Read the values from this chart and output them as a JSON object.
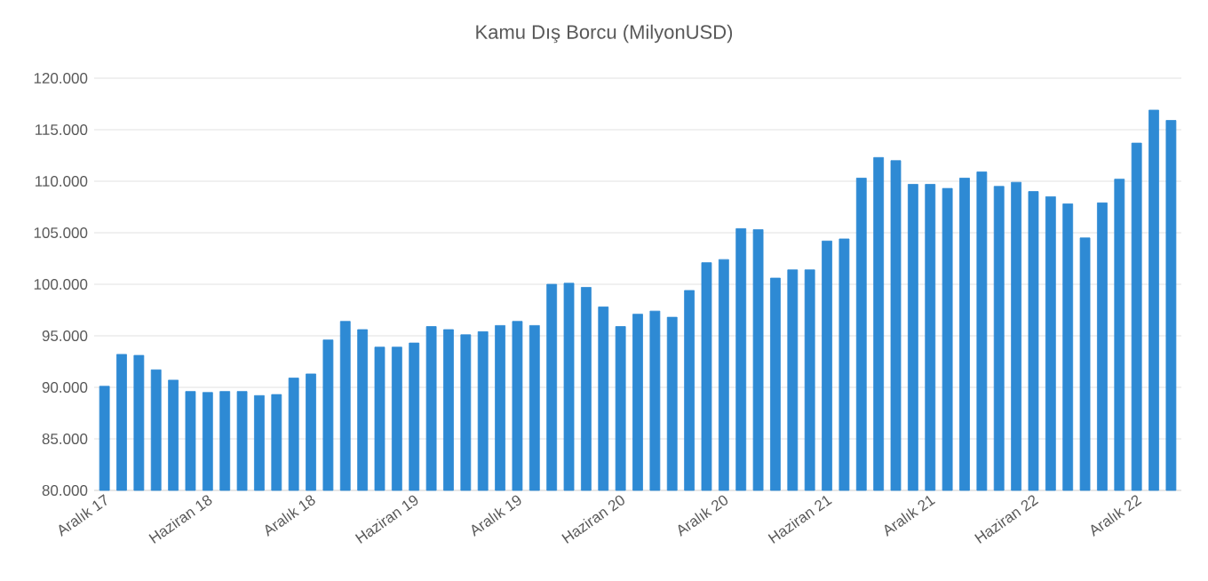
{
  "chart_data": {
    "type": "bar",
    "title": "Kamu Dış Borcu (MilyonUSD)",
    "categories": [
      "Aralık 17",
      null,
      null,
      null,
      null,
      null,
      "Haziran 18",
      null,
      null,
      null,
      null,
      null,
      "Aralık 18",
      null,
      null,
      null,
      null,
      null,
      "Haziran 19",
      null,
      null,
      null,
      null,
      null,
      "Aralık 19",
      null,
      null,
      null,
      null,
      null,
      "Haziran 20",
      null,
      null,
      null,
      null,
      null,
      "Aralık 20",
      null,
      null,
      null,
      null,
      null,
      "Haziran 21",
      null,
      null,
      null,
      null,
      null,
      "Aralık 21",
      null,
      null,
      null,
      null,
      null,
      "Haziran 22",
      null,
      null,
      null,
      null,
      null,
      "Aralık 22",
      null,
      null
    ],
    "values": [
      90100,
      93200,
      93100,
      91700,
      90700,
      89600,
      89500,
      89600,
      89600,
      89200,
      89300,
      90900,
      91300,
      94600,
      96400,
      95600,
      93900,
      93900,
      94300,
      95900,
      95600,
      95100,
      95400,
      96000,
      96400,
      96000,
      100000,
      100100,
      99700,
      97800,
      95900,
      97100,
      97400,
      96800,
      99400,
      102100,
      102400,
      105400,
      105300,
      100600,
      101400,
      101400,
      104200,
      104400,
      110300,
      112300,
      112000,
      109700,
      109700,
      109300,
      110300,
      110900,
      109500,
      109900,
      109000,
      108500,
      107800,
      104500,
      107900,
      110200,
      113700,
      116900,
      115900
    ],
    "color": "#2e8ad4",
    "ylim": [
      80000,
      120000
    ],
    "yticks": [
      {
        "value": 80000,
        "label": "80.000"
      },
      {
        "value": 85000,
        "label": "85.000"
      },
      {
        "value": 90000,
        "label": "90.000"
      },
      {
        "value": 95000,
        "label": "95.000"
      },
      {
        "value": 100000,
        "label": "100.000"
      },
      {
        "value": 105000,
        "label": "105.000"
      },
      {
        "value": 110000,
        "label": "110.000"
      },
      {
        "value": 115000,
        "label": "115.000"
      },
      {
        "value": 120000,
        "label": "120.000"
      }
    ],
    "grid": "y"
  }
}
